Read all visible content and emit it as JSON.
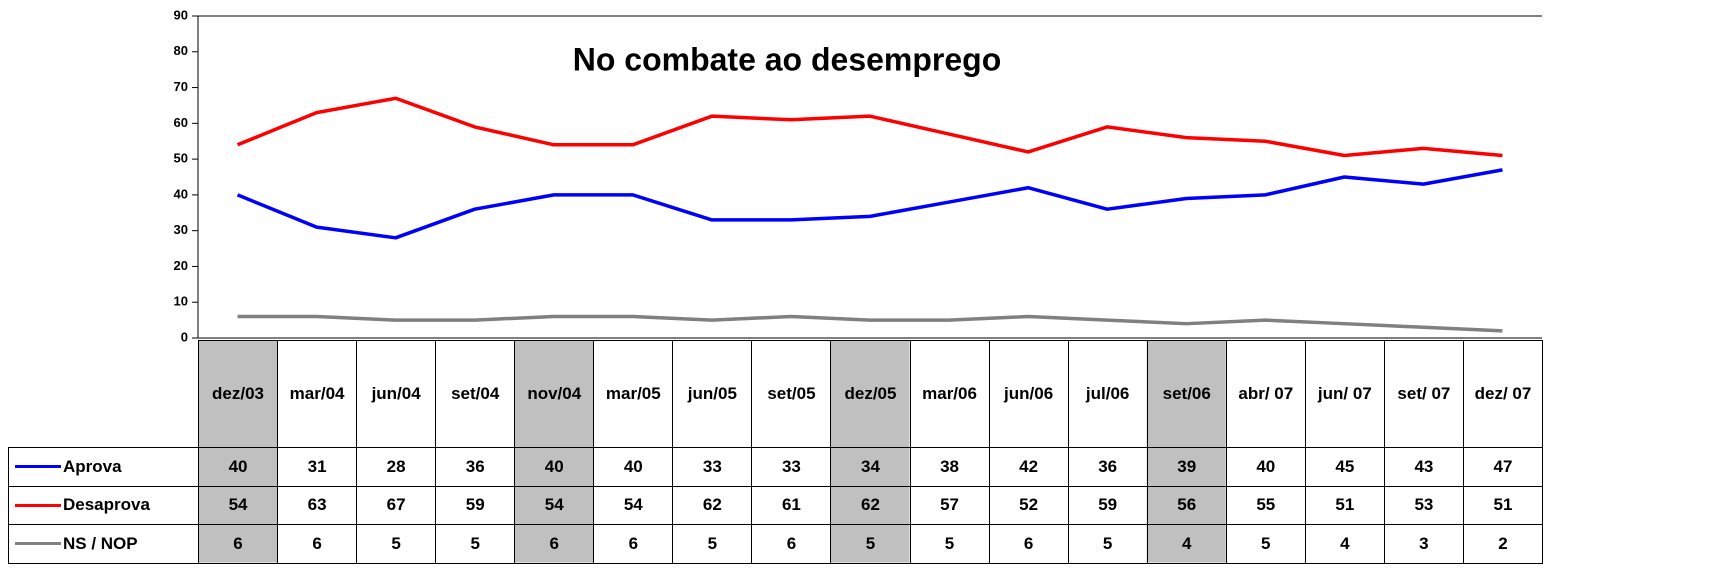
{
  "chart_data": {
    "type": "line",
    "title": "No combate ao desemprego",
    "categories": [
      "dez/03",
      "mar/04",
      "jun/04",
      "set/04",
      "nov/04",
      "mar/05",
      "jun/05",
      "set/05",
      "dez/05",
      "mar/06",
      "jun/06",
      "jul/06",
      "set/06",
      "abr/ 07",
      "jun/ 07",
      "set/ 07",
      "dez/ 07"
    ],
    "series": [
      {
        "name": "Aprova",
        "color": "#0000ff",
        "values": [
          40,
          31,
          28,
          36,
          40,
          40,
          33,
          33,
          34,
          38,
          42,
          36,
          39,
          40,
          45,
          43,
          47
        ]
      },
      {
        "name": "Desaprova",
        "color": "#ff0000",
        "values": [
          54,
          63,
          67,
          59,
          54,
          54,
          62,
          61,
          62,
          57,
          52,
          59,
          56,
          55,
          51,
          53,
          51
        ]
      },
      {
        "name": "NS / NOP",
        "color": "#808080",
        "values": [
          6,
          6,
          5,
          5,
          6,
          6,
          5,
          6,
          5,
          5,
          6,
          5,
          4,
          5,
          4,
          3,
          2
        ]
      }
    ],
    "ylim": [
      0,
      90
    ],
    "yticks": [
      0,
      10,
      20,
      30,
      40,
      50,
      60,
      70,
      80,
      90
    ],
    "highlight": [
      0,
      4,
      8,
      12
    ]
  }
}
